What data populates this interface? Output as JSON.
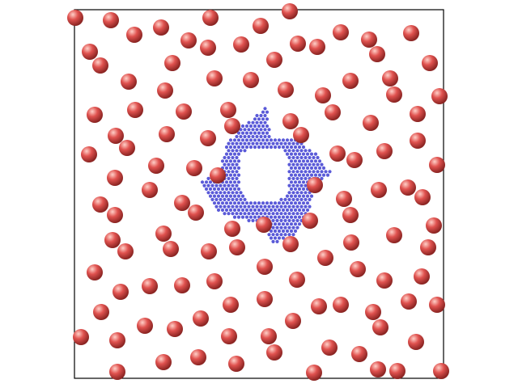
{
  "scene": {
    "colors": {
      "box_stroke": "#000000",
      "large_particle": "#e0524f",
      "large_particle_highlight": "#ffd0c8",
      "large_particle_shadow": "#8a2422",
      "small_particle": "#5a5ad8",
      "background": "#ffffff"
    },
    "large_particle_count": 150,
    "cluster_shape": "ring of small blue particles with a square hole"
  }
}
